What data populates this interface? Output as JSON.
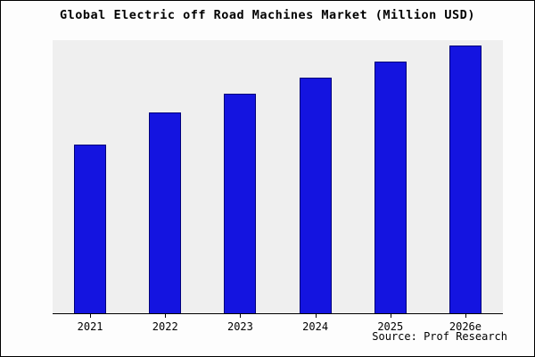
{
  "source": "Source: Prof Research",
  "colors": {
    "bar_fill": "#1414e0",
    "bar_edge": "#00007a",
    "plot_background": "#efefef",
    "axis": "#000000"
  },
  "chart_data": {
    "type": "bar",
    "title": "Global Electric off Road Machines Market (Million USD)",
    "categories": [
      "2021",
      "2022",
      "2023",
      "2024",
      "2025",
      "2026e"
    ],
    "values": [
      63,
      75,
      82,
      88,
      94,
      100
    ],
    "xlabel": "",
    "ylabel": "",
    "ylim": [
      0,
      102
    ],
    "grid": false,
    "legend": "none",
    "value_axis_labels_visible": false,
    "notes": "No y-axis tick labels are shown in the chart; values are relative estimates with 2026e normalized to 100."
  }
}
